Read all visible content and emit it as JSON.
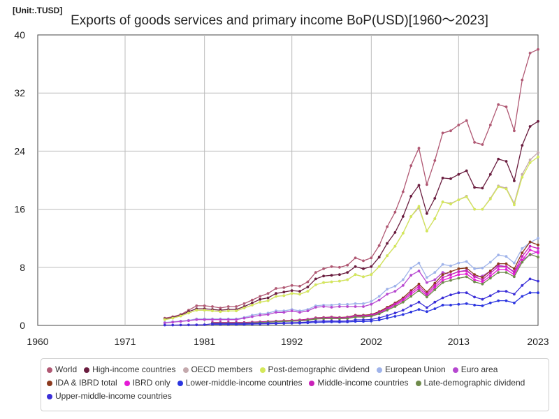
{
  "unit_label": "[Unit:.TUSD]",
  "chart_data": {
    "type": "line",
    "title": "Exports of goods services and primary income BoP(USD)[1960～2023]",
    "xlabel": "",
    "ylabel": "",
    "xlim": [
      1960,
      2023
    ],
    "ylim": [
      0,
      40
    ],
    "x_ticks": [
      1960,
      1971,
      1981,
      1992,
      2002,
      2013,
      2023
    ],
    "y_ticks": [
      0,
      8,
      16,
      24,
      32,
      40
    ],
    "grid": true,
    "legend_position": "bottom",
    "series": [
      {
        "name": "World",
        "color": "#b05873",
        "x": [
          1976,
          1977,
          1978,
          1979,
          1980,
          1981,
          1982,
          1983,
          1984,
          1985,
          1986,
          1987,
          1988,
          1989,
          1990,
          1991,
          1992,
          1993,
          1994,
          1995,
          1996,
          1997,
          1998,
          1999,
          2000,
          2001,
          2002,
          2003,
          2004,
          2005,
          2006,
          2007,
          2008,
          2009,
          2010,
          2011,
          2012,
          2013,
          2014,
          2015,
          2016,
          2017,
          2018,
          2019,
          2020,
          2021,
          2022,
          2023
        ],
        "values": [
          1.0,
          1.2,
          1.5,
          2.1,
          2.7,
          2.7,
          2.6,
          2.4,
          2.6,
          2.6,
          3.0,
          3.5,
          4.0,
          4.4,
          5.1,
          5.2,
          5.5,
          5.4,
          6.0,
          7.3,
          7.8,
          8.1,
          8.0,
          8.3,
          9.3,
          8.9,
          9.3,
          11.0,
          13.6,
          15.6,
          18.4,
          22.0,
          24.4,
          19.4,
          22.7,
          26.5,
          26.8,
          27.6,
          28.2,
          25.2,
          24.9,
          27.6,
          30.4,
          30.1,
          26.8,
          33.8,
          37.5,
          38.0
        ]
      },
      {
        "name": "High-income countries",
        "color": "#6a1d3f",
        "x": [
          1976,
          1977,
          1978,
          1979,
          1980,
          1981,
          1982,
          1983,
          1984,
          1985,
          1986,
          1987,
          1988,
          1989,
          1990,
          1991,
          1992,
          1993,
          1994,
          1995,
          1996,
          1997,
          1998,
          1999,
          2000,
          2001,
          2002,
          2003,
          2004,
          2005,
          2006,
          2007,
          2008,
          2009,
          2010,
          2011,
          2012,
          2013,
          2014,
          2015,
          2016,
          2017,
          2018,
          2019,
          2020,
          2021,
          2022,
          2023
        ],
        "values": [
          0.9,
          1.1,
          1.4,
          1.9,
          2.3,
          2.3,
          2.2,
          2.1,
          2.2,
          2.2,
          2.6,
          3.1,
          3.6,
          3.8,
          4.4,
          4.6,
          4.8,
          4.7,
          5.3,
          6.4,
          6.8,
          6.9,
          7.0,
          7.3,
          8.1,
          7.8,
          8.1,
          9.4,
          11.3,
          12.8,
          15.0,
          17.8,
          19.3,
          15.4,
          17.5,
          20.3,
          20.2,
          20.8,
          21.3,
          19.0,
          18.9,
          20.8,
          22.9,
          22.6,
          19.9,
          24.8,
          27.4,
          28.1
        ]
      },
      {
        "name": "OECD members",
        "color": "#c4a9ad",
        "x": [
          1976,
          1977,
          1978,
          1979,
          1980,
          1981,
          1982,
          1983,
          1984,
          1985,
          1986,
          1987,
          1988,
          1989,
          1990,
          1991,
          1992,
          1993,
          1994,
          1995,
          1996,
          1997,
          1998,
          1999,
          2000,
          2001,
          2002,
          2003,
          2004,
          2005,
          2006,
          2007,
          2008,
          2009,
          2010,
          2011,
          2012,
          2013,
          2014,
          2015,
          2016,
          2017,
          2018,
          2019,
          2020,
          2021,
          2022,
          2023
        ],
        "values": [
          0.8,
          1.0,
          1.3,
          1.7,
          2.1,
          2.1,
          2.0,
          1.9,
          2.0,
          2.0,
          2.4,
          2.8,
          3.2,
          3.4,
          4.0,
          4.1,
          4.4,
          4.3,
          4.7,
          5.6,
          5.9,
          6.0,
          6.1,
          6.3,
          7.0,
          6.7,
          7.0,
          8.1,
          9.6,
          10.9,
          12.7,
          15.0,
          16.2,
          13.0,
          14.7,
          17.0,
          16.8,
          17.3,
          17.8,
          16.0,
          16.0,
          17.5,
          19.2,
          18.9,
          16.8,
          20.8,
          22.8,
          23.8
        ]
      },
      {
        "name": "Post-demographic dividend",
        "color": "#d4e85a",
        "x": [
          1976,
          1977,
          1978,
          1979,
          1980,
          1981,
          1982,
          1983,
          1984,
          1985,
          1986,
          1987,
          1988,
          1989,
          1990,
          1991,
          1992,
          1993,
          1994,
          1995,
          1996,
          1997,
          1998,
          1999,
          2000,
          2001,
          2002,
          2003,
          2004,
          2005,
          2006,
          2007,
          2008,
          2009,
          2010,
          2011,
          2012,
          2013,
          2014,
          2015,
          2016,
          2017,
          2018,
          2019,
          2020,
          2021,
          2022,
          2023
        ],
        "values": [
          0.8,
          1.0,
          1.3,
          1.7,
          2.1,
          2.1,
          2.0,
          1.9,
          2.0,
          2.0,
          2.4,
          2.8,
          3.2,
          3.4,
          4.0,
          4.1,
          4.4,
          4.3,
          4.7,
          5.6,
          5.9,
          6.0,
          6.1,
          6.3,
          7.0,
          6.7,
          7.0,
          8.1,
          9.6,
          10.9,
          12.7,
          15.0,
          16.4,
          13.0,
          14.7,
          17.0,
          16.7,
          17.3,
          17.7,
          16.0,
          16.0,
          17.4,
          19.1,
          18.8,
          16.6,
          20.4,
          22.4,
          23.2
        ]
      },
      {
        "name": "European Union",
        "color": "#9fb3ea",
        "x": [
          1976,
          1977,
          1978,
          1979,
          1980,
          1981,
          1982,
          1983,
          1984,
          1985,
          1986,
          1987,
          1988,
          1989,
          1990,
          1991,
          1992,
          1993,
          1994,
          1995,
          1996,
          1997,
          1998,
          1999,
          2000,
          2001,
          2002,
          2003,
          2004,
          2005,
          2006,
          2007,
          2008,
          2009,
          2010,
          2011,
          2012,
          2013,
          2014,
          2015,
          2016,
          2017,
          2018,
          2019,
          2020,
          2021,
          2022,
          2023
        ],
        "values": [
          0.4,
          0.5,
          0.6,
          0.7,
          0.9,
          0.9,
          0.9,
          0.9,
          0.9,
          0.9,
          1.1,
          1.4,
          1.6,
          1.7,
          2.0,
          2.0,
          2.2,
          2.0,
          2.2,
          2.7,
          2.8,
          2.8,
          2.9,
          2.9,
          3.0,
          3.0,
          3.3,
          4.0,
          5.0,
          5.4,
          6.3,
          7.9,
          8.6,
          6.6,
          7.3,
          8.4,
          8.2,
          8.6,
          8.8,
          7.8,
          7.9,
          8.7,
          9.7,
          9.5,
          8.6,
          10.6,
          11.4,
          12.0
        ]
      },
      {
        "name": "Euro area",
        "color": "#b648d0",
        "x": [
          1976,
          1977,
          1978,
          1979,
          1980,
          1981,
          1982,
          1983,
          1984,
          1985,
          1986,
          1987,
          1988,
          1989,
          1990,
          1991,
          1992,
          1993,
          1994,
          1995,
          1996,
          1997,
          1998,
          1999,
          2000,
          2001,
          2002,
          2003,
          2004,
          2005,
          2006,
          2007,
          2008,
          2009,
          2010,
          2011,
          2012,
          2013,
          2014,
          2015,
          2016,
          2017,
          2018,
          2019,
          2020,
          2021,
          2022,
          2023
        ],
        "values": [
          0.35,
          0.45,
          0.55,
          0.65,
          0.8,
          0.8,
          0.8,
          0.8,
          0.8,
          0.8,
          1.0,
          1.2,
          1.4,
          1.5,
          1.8,
          1.8,
          2.0,
          1.8,
          2.0,
          2.5,
          2.6,
          2.5,
          2.6,
          2.6,
          2.6,
          2.6,
          2.9,
          3.5,
          4.3,
          4.7,
          5.5,
          6.9,
          7.5,
          5.9,
          6.3,
          7.3,
          7.0,
          7.4,
          7.6,
          6.7,
          6.8,
          7.5,
          8.3,
          8.1,
          7.3,
          9.0,
          9.7,
          10.2
        ]
      },
      {
        "name": "IDA & IBRD total",
        "color": "#8c3a1e",
        "x": [
          1982,
          1983,
          1984,
          1985,
          1986,
          1987,
          1988,
          1989,
          1990,
          1991,
          1992,
          1993,
          1994,
          1995,
          1996,
          1997,
          1998,
          1999,
          2000,
          2001,
          2002,
          2003,
          2004,
          2005,
          2006,
          2007,
          2008,
          2009,
          2010,
          2011,
          2012,
          2013,
          2014,
          2015,
          2016,
          2017,
          2018,
          2019,
          2020,
          2021,
          2022,
          2023
        ],
        "values": [
          0.4,
          0.4,
          0.4,
          0.4,
          0.4,
          0.45,
          0.5,
          0.55,
          0.6,
          0.65,
          0.7,
          0.75,
          0.85,
          1.05,
          1.1,
          1.15,
          1.1,
          1.15,
          1.4,
          1.4,
          1.5,
          1.9,
          2.5,
          3.1,
          3.8,
          4.8,
          5.7,
          4.6,
          5.8,
          7.0,
          7.4,
          7.8,
          7.9,
          7.0,
          6.6,
          7.5,
          8.5,
          8.5,
          7.8,
          10.0,
          11.5,
          11.1
        ]
      },
      {
        "name": "IBRD only",
        "color": "#e51ad6",
        "x": [
          1982,
          1983,
          1984,
          1985,
          1986,
          1987,
          1988,
          1989,
          1990,
          1991,
          1992,
          1993,
          1994,
          1995,
          1996,
          1997,
          1998,
          1999,
          2000,
          2001,
          2002,
          2003,
          2004,
          2005,
          2006,
          2007,
          2008,
          2009,
          2010,
          2011,
          2012,
          2013,
          2014,
          2015,
          2016,
          2017,
          2018,
          2019,
          2020,
          2021,
          2022,
          2023
        ],
        "values": [
          0.35,
          0.35,
          0.35,
          0.35,
          0.35,
          0.4,
          0.45,
          0.5,
          0.55,
          0.6,
          0.65,
          0.7,
          0.8,
          0.95,
          1.0,
          1.05,
          1.0,
          1.05,
          1.25,
          1.25,
          1.35,
          1.7,
          2.2,
          2.8,
          3.4,
          4.3,
          5.1,
          4.1,
          5.2,
          6.2,
          6.6,
          7.0,
          7.1,
          6.3,
          6.0,
          6.8,
          7.7,
          7.7,
          7.0,
          9.0,
          10.4,
          10.0
        ]
      },
      {
        "name": "Lower-middle-income countries",
        "color": "#2b35e0",
        "x": [
          1982,
          1983,
          1984,
          1985,
          1986,
          1987,
          1988,
          1989,
          1990,
          1991,
          1992,
          1993,
          1994,
          1995,
          1996,
          1997,
          1998,
          1999,
          2000,
          2001,
          2002,
          2003,
          2004,
          2005,
          2006,
          2007,
          2008,
          2009,
          2010,
          2011,
          2012,
          2013,
          2014,
          2015,
          2016,
          2017,
          2018,
          2019,
          2020,
          2021,
          2022,
          2023
        ],
        "values": [
          0.15,
          0.15,
          0.15,
          0.15,
          0.15,
          0.18,
          0.2,
          0.22,
          0.25,
          0.28,
          0.3,
          0.32,
          0.36,
          0.42,
          0.45,
          0.48,
          0.46,
          0.48,
          0.55,
          0.55,
          0.6,
          0.75,
          1.0,
          1.25,
          1.5,
          1.85,
          2.2,
          1.9,
          2.3,
          2.8,
          2.8,
          2.9,
          3.0,
          2.8,
          2.7,
          3.1,
          3.4,
          3.4,
          3.1,
          4.0,
          4.5,
          4.5
        ]
      },
      {
        "name": "Middle-income countries",
        "color": "#c921b8",
        "x": [
          1982,
          1983,
          1984,
          1985,
          1986,
          1987,
          1988,
          1989,
          1990,
          1991,
          1992,
          1993,
          1994,
          1995,
          1996,
          1997,
          1998,
          1999,
          2000,
          2001,
          2002,
          2003,
          2004,
          2005,
          2006,
          2007,
          2008,
          2009,
          2010,
          2011,
          2012,
          2013,
          2014,
          2015,
          2016,
          2017,
          2018,
          2019,
          2020,
          2021,
          2022,
          2023
        ],
        "values": [
          0.38,
          0.38,
          0.38,
          0.38,
          0.38,
          0.43,
          0.48,
          0.52,
          0.57,
          0.62,
          0.67,
          0.72,
          0.82,
          1.0,
          1.05,
          1.1,
          1.05,
          1.1,
          1.32,
          1.32,
          1.42,
          1.8,
          2.35,
          2.95,
          3.6,
          4.55,
          5.4,
          4.35,
          5.5,
          6.6,
          7.0,
          7.4,
          7.5,
          6.7,
          6.3,
          7.2,
          8.1,
          8.1,
          7.4,
          9.5,
          10.9,
          10.6
        ]
      },
      {
        "name": "Late-demographic dividend",
        "color": "#6e8a4a",
        "x": [
          1982,
          1983,
          1984,
          1985,
          1986,
          1987,
          1988,
          1989,
          1990,
          1991,
          1992,
          1993,
          1994,
          1995,
          1996,
          1997,
          1998,
          1999,
          2000,
          2001,
          2002,
          2003,
          2004,
          2005,
          2006,
          2007,
          2008,
          2009,
          2010,
          2011,
          2012,
          2013,
          2014,
          2015,
          2016,
          2017,
          2018,
          2019,
          2020,
          2021,
          2022,
          2023
        ],
        "values": [
          0.3,
          0.3,
          0.3,
          0.3,
          0.3,
          0.35,
          0.4,
          0.45,
          0.5,
          0.55,
          0.6,
          0.62,
          0.7,
          0.88,
          0.92,
          0.95,
          0.92,
          0.95,
          1.15,
          1.15,
          1.25,
          1.6,
          2.1,
          2.6,
          3.2,
          4.0,
          4.8,
          3.9,
          4.9,
          5.9,
          6.2,
          6.5,
          6.7,
          6.0,
          5.7,
          6.5,
          7.3,
          7.3,
          6.7,
          8.7,
          9.8,
          9.4
        ]
      },
      {
        "name": "Upper-middle-income countries",
        "color": "#3b2fd8",
        "x": [
          1976,
          1977,
          1978,
          1979,
          1980,
          1981,
          1982,
          1983,
          1984,
          1985,
          1986,
          1987,
          1988,
          1989,
          1990,
          1991,
          1992,
          1993,
          1994,
          1995,
          1996,
          1997,
          1998,
          1999,
          2000,
          2001,
          2002,
          2003,
          2004,
          2005,
          2006,
          2007,
          2008,
          2009,
          2010,
          2011,
          2012,
          2013,
          2014,
          2015,
          2016,
          2017,
          2018,
          2019,
          2020,
          2021,
          2022,
          2023
        ],
        "values": [
          0.05,
          0.05,
          0.06,
          0.07,
          0.08,
          0.1,
          0.22,
          0.22,
          0.22,
          0.22,
          0.22,
          0.25,
          0.28,
          0.3,
          0.32,
          0.35,
          0.37,
          0.4,
          0.46,
          0.58,
          0.6,
          0.62,
          0.6,
          0.62,
          0.77,
          0.77,
          0.82,
          1.05,
          1.35,
          1.7,
          2.1,
          2.7,
          3.2,
          2.45,
          3.2,
          3.8,
          4.2,
          4.5,
          4.5,
          3.9,
          3.6,
          4.1,
          4.7,
          4.7,
          4.3,
          5.5,
          6.4,
          6.1
        ]
      }
    ]
  }
}
